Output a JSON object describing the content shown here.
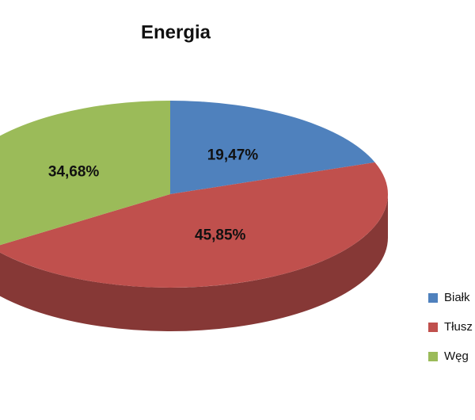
{
  "chart_data": {
    "type": "pie",
    "title": "Energia",
    "categories": [
      "Białk",
      "Tłusz",
      "Węg"
    ],
    "values": [
      19.47,
      45.85,
      34.68
    ],
    "value_labels": [
      "19,47%",
      "45,85%",
      "34,68%"
    ],
    "colors": [
      "#4f81bd",
      "#c0504d",
      "#9bbb59"
    ],
    "legend": "right"
  }
}
